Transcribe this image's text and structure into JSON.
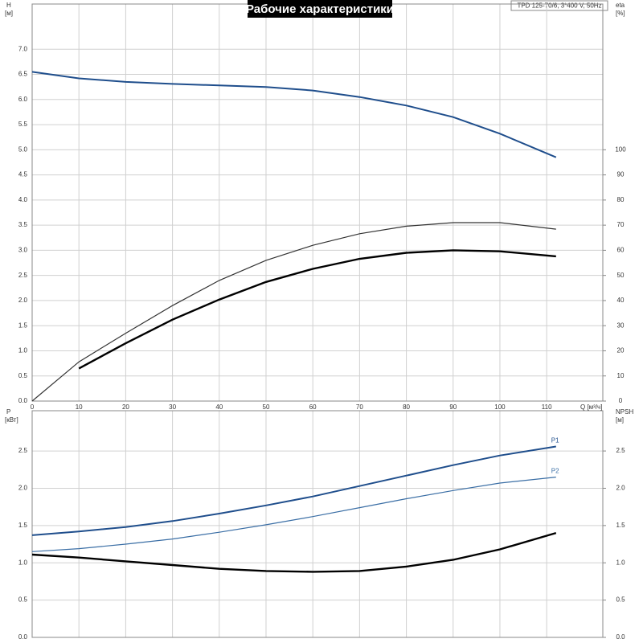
{
  "chart_data": [
    {
      "type": "line",
      "title": "Рабочие характеристики",
      "subtitle": "TPD 125-70/6, 3*400 V, 50Hz",
      "ylabel": "H",
      "yunit": "[м]",
      "y2label": "eta",
      "y2unit": "[%]",
      "xlabel": "Q [м³/ч]",
      "x": [
        0,
        10,
        20,
        30,
        40,
        50,
        60,
        70,
        80,
        90,
        100,
        112
      ],
      "xlim": [
        0,
        122
      ],
      "xticks": [
        0,
        10,
        20,
        30,
        40,
        50,
        60,
        70,
        80,
        90,
        100,
        110
      ],
      "ylim": [
        0,
        7.9
      ],
      "yticks": [
        {
          "value": 0,
          "label": "0.0"
        },
        0.5,
        {
          "value": 1,
          "label": "1.0"
        },
        1.5,
        {
          "value": 2,
          "label": "2.0"
        },
        2.5,
        {
          "value": 3,
          "label": "3.0"
        },
        3.5,
        {
          "value": 4,
          "label": "4.0"
        },
        4.5,
        {
          "value": 5,
          "label": "5.0"
        },
        5.5,
        {
          "value": 6,
          "label": "6.0"
        },
        6.5,
        {
          "value": 7,
          "label": "7.0"
        }
      ],
      "y2lim": [
        0,
        158
      ],
      "y2ticks": [
        0,
        10,
        20,
        30,
        40,
        50,
        60,
        70,
        80,
        90,
        100
      ],
      "grid": true,
      "series": [
        {
          "color": "#1f4e8c",
          "width": 2,
          "values": [
            6.55,
            6.42,
            6.35,
            6.31,
            6.28,
            6.25,
            6.18,
            6.05,
            5.88,
            5.65,
            5.32,
            4.85
          ]
        },
        {
          "color": "#333333",
          "width": 1.2,
          "axis": "y2",
          "values": [
            0,
            15.6,
            27,
            38,
            48,
            56,
            62,
            66.6,
            69.6,
            71,
            71,
            68.4
          ]
        },
        {
          "color": "#000000",
          "width": 2.4,
          "axis": "y2",
          "values": [
            null,
            13,
            23,
            32.4,
            40.4,
            47.4,
            52.6,
            56.6,
            59,
            60,
            59.6,
            57.6
          ]
        }
      ]
    },
    {
      "type": "line",
      "ylabel": "P",
      "yunit": "[кВт]",
      "y2label": "NPSH",
      "y2unit": "[м]",
      "x": [
        0,
        10,
        20,
        30,
        40,
        50,
        60,
        70,
        80,
        90,
        100,
        112
      ],
      "xlim": [
        0,
        122
      ],
      "xticks": [
        0,
        10,
        20,
        30,
        40,
        50,
        60,
        70,
        80,
        90,
        100,
        110
      ],
      "ylim": [
        0,
        3.04
      ],
      "yticks": [
        {
          "value": 0,
          "label": "0.0"
        },
        0.5,
        {
          "value": 1,
          "label": "1.0"
        },
        1.5,
        {
          "value": 2,
          "label": "2.0"
        },
        2.5
      ],
      "y2lim": [
        0,
        3.04
      ],
      "y2ticks": [
        {
          "value": 0,
          "label": "0.0"
        },
        0.5,
        {
          "value": 1,
          "label": "1.0"
        },
        1.5,
        {
          "value": 2,
          "label": "2.0"
        },
        2.5
      ],
      "grid": true,
      "series": [
        {
          "name": "P1",
          "color": "#1f4e8c",
          "width": 2,
          "values": [
            1.37,
            1.42,
            1.48,
            1.56,
            1.66,
            1.77,
            1.89,
            2.03,
            2.17,
            2.31,
            2.44,
            2.56
          ]
        },
        {
          "name": "P2",
          "color": "#3a6ea5",
          "width": 1.2,
          "values": [
            1.15,
            1.19,
            1.25,
            1.32,
            1.41,
            1.51,
            1.62,
            1.74,
            1.86,
            1.97,
            2.07,
            2.15
          ]
        },
        {
          "color": "#000000",
          "width": 2.4,
          "axis": "y2",
          "values": [
            1.11,
            1.07,
            1.02,
            0.97,
            0.92,
            0.89,
            0.88,
            0.89,
            0.95,
            1.04,
            1.18,
            1.4
          ]
        }
      ]
    }
  ]
}
